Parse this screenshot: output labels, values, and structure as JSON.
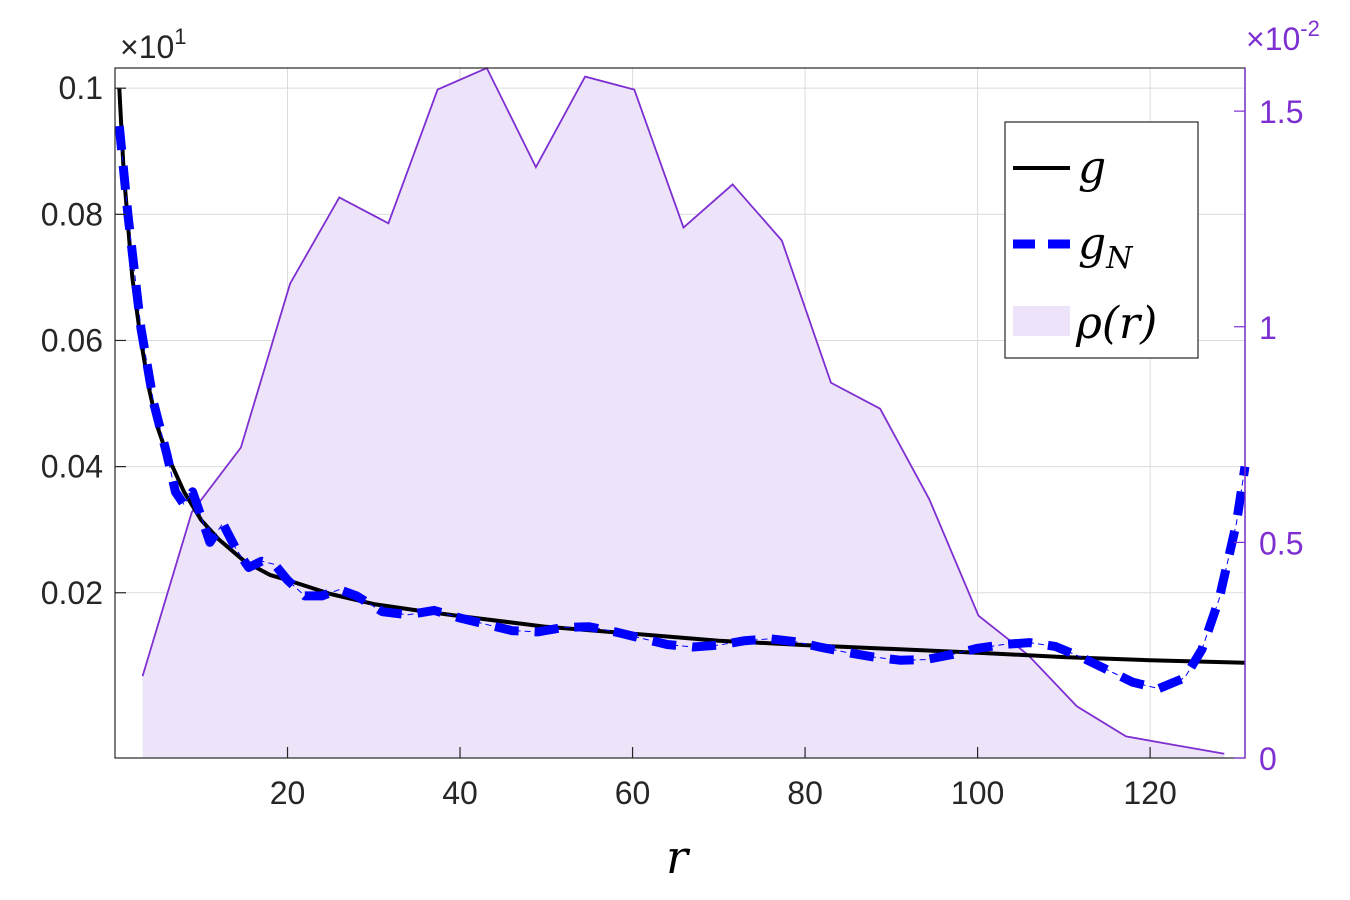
{
  "chart_data": {
    "type": "line",
    "xlabel": "r",
    "xlim": [
      0,
      131
    ],
    "xticks": [
      20,
      40,
      60,
      80,
      100,
      120
    ],
    "y_left": {
      "lim": [
        -0.0062,
        0.1032
      ],
      "ticks": [
        0.02,
        0.04,
        0.06,
        0.08,
        0.1
      ],
      "tick_labels": [
        "0.02",
        "0.04",
        "0.06",
        "0.08",
        "0.1"
      ],
      "exponent_label": "×10",
      "exponent_power": "1"
    },
    "y_right": {
      "lim": [
        0,
        0.016
      ],
      "ticks": [
        0,
        0.005,
        0.01,
        0.015
      ],
      "tick_labels": [
        "0",
        "0.5",
        "1",
        "1.5"
      ],
      "exponent_label": "×10",
      "exponent_power": "-2",
      "color": "#7E2FD1"
    },
    "grid": true,
    "legend_position": "top-right",
    "series": [
      {
        "name": "g",
        "axis": "left",
        "style": "solid",
        "color": "#000000",
        "x": [
          0.5,
          1,
          2,
          3,
          4,
          5,
          6,
          8,
          10,
          12,
          15,
          18,
          20,
          25,
          30,
          35,
          40,
          50,
          60,
          70,
          80,
          90,
          100,
          110,
          120,
          131
        ],
        "y": [
          0.1,
          0.087,
          0.07,
          0.06,
          0.052,
          0.046,
          0.042,
          0.036,
          0.0315,
          0.0285,
          0.025,
          0.0228,
          0.022,
          0.0198,
          0.0182,
          0.0172,
          0.0163,
          0.0146,
          0.0135,
          0.0124,
          0.0117,
          0.0111,
          0.0105,
          0.0098,
          0.0093,
          0.0089
        ]
      },
      {
        "name": "g_N",
        "axis": "left",
        "style": "dashed",
        "color": "#0000FF",
        "x": [
          0.5,
          1.5,
          3,
          4.5,
          6,
          7,
          8,
          9,
          10,
          11,
          12.5,
          14,
          15.5,
          17,
          18.5,
          20,
          22,
          24,
          26,
          28,
          31,
          34,
          37,
          40,
          43,
          46,
          49,
          52,
          55,
          58,
          61,
          64,
          67,
          70,
          73,
          76,
          79,
          82,
          85,
          88,
          91,
          94,
          97,
          100,
          103,
          106,
          109,
          112,
          115,
          118,
          121,
          124,
          126,
          128,
          130,
          131
        ],
        "y": [
          0.094,
          0.08,
          0.062,
          0.05,
          0.042,
          0.036,
          0.034,
          0.036,
          0.032,
          0.028,
          0.031,
          0.027,
          0.024,
          0.025,
          0.0245,
          0.022,
          0.0195,
          0.0195,
          0.0205,
          0.0195,
          0.017,
          0.0165,
          0.0172,
          0.016,
          0.015,
          0.014,
          0.0138,
          0.0145,
          0.0146,
          0.0138,
          0.0128,
          0.0118,
          0.0114,
          0.0117,
          0.0124,
          0.0127,
          0.0122,
          0.0113,
          0.0105,
          0.0098,
          0.0093,
          0.0094,
          0.0102,
          0.0112,
          0.0118,
          0.0121,
          0.0115,
          0.0098,
          0.0078,
          0.0058,
          0.0048,
          0.0065,
          0.011,
          0.019,
          0.031,
          0.04
        ]
      },
      {
        "name": "ρ(r)",
        "axis": "right",
        "style": "area",
        "color": "#7E2FD1",
        "fill": "#EEE4F9",
        "x": [
          3.2,
          8.9,
          14.6,
          20.3,
          26.0,
          31.7,
          37.4,
          43.1,
          48.8,
          54.5,
          60.2,
          65.9,
          71.6,
          77.3,
          83.0,
          88.7,
          94.4,
          100.1,
          105.8,
          111.5,
          117.2,
          122.9,
          128.6
        ],
        "y": [
          0.0019,
          0.0057,
          0.0072,
          0.011,
          0.013,
          0.0124,
          0.0155,
          0.016,
          0.0137,
          0.0158,
          0.0155,
          0.0123,
          0.0133,
          0.012,
          0.0087,
          0.0081,
          0.006,
          0.0033,
          0.0024,
          0.0012,
          0.0005,
          0.0003,
          0.0001
        ]
      }
    ],
    "legend": [
      {
        "symbol": "g",
        "subscript": ""
      },
      {
        "symbol": "g",
        "subscript": "N"
      },
      {
        "symbol": "ρ(r)",
        "subscript": ""
      }
    ]
  }
}
